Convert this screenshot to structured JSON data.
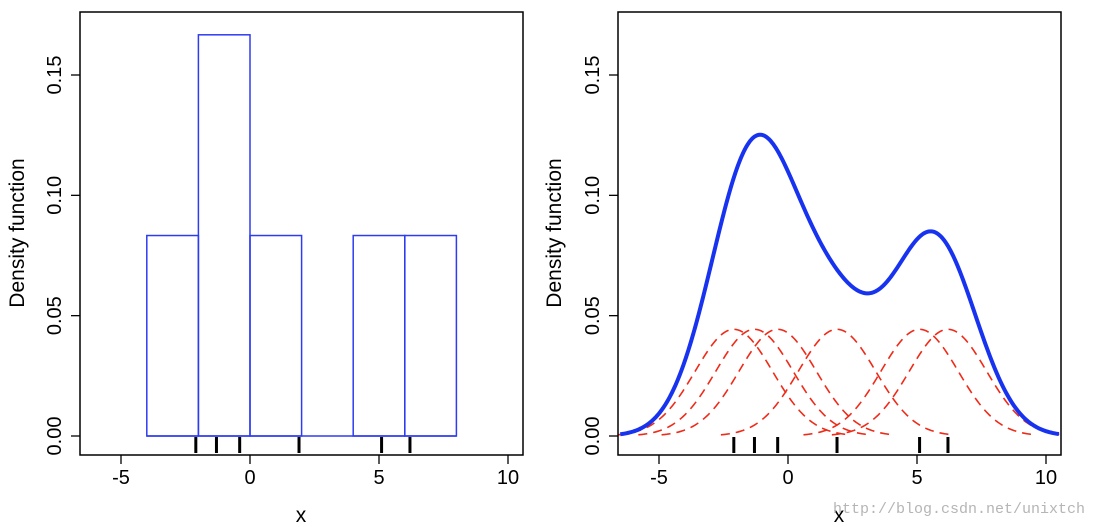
{
  "chart_data": [
    {
      "type": "bar",
      "subtype": "histogram",
      "xlabel": "x",
      "ylabel": "Density function",
      "xlim": [
        -6.5,
        10.5
      ],
      "ylim": [
        0,
        0.175
      ],
      "xticks": [
        -5,
        0,
        5,
        10
      ],
      "xtick_labels": [
        "-5",
        "0",
        "5",
        "10"
      ],
      "yticks": [
        0.0,
        0.05,
        0.1,
        0.15
      ],
      "ytick_labels": [
        "0.00",
        "0.05",
        "0.10",
        "0.15"
      ],
      "bins": [
        {
          "x0": -4,
          "x1": -2,
          "value": 0.0833
        },
        {
          "x0": -2,
          "x1": 0,
          "value": 0.1667
        },
        {
          "x0": 0,
          "x1": 2,
          "value": 0.0833
        },
        {
          "x0": 2,
          "x1": 4,
          "value": 0.0
        },
        {
          "x0": 4,
          "x1": 6,
          "value": 0.0833
        },
        {
          "x0": 6,
          "x1": 8,
          "value": 0.0833
        }
      ],
      "rug": [
        -2.1,
        -1.3,
        -0.4,
        1.9,
        5.1,
        6.2
      ],
      "color": "#2e3cf0"
    },
    {
      "type": "line",
      "subtype": "kernel-density",
      "xlabel": "x",
      "ylabel": "Density function",
      "xlim": [
        -6.5,
        10.5
      ],
      "ylim": [
        0,
        0.175
      ],
      "xticks": [
        -5,
        0,
        5,
        10
      ],
      "xtick_labels": [
        "-5",
        "0",
        "5",
        "10"
      ],
      "yticks": [
        0.0,
        0.05,
        0.1,
        0.15
      ],
      "ytick_labels": [
        "0.00",
        "0.05",
        "0.10",
        "0.15"
      ],
      "data_points": [
        -2.1,
        -1.3,
        -0.4,
        1.9,
        5.1,
        6.2
      ],
      "bandwidth": 1.5,
      "kde_color": "#1733f0",
      "kernel_color": "#f02a18",
      "series": [
        {
          "name": "kernel density estimate",
          "style": "solid"
        },
        {
          "name": "individual kernels",
          "style": "dashed"
        }
      ]
    }
  ],
  "watermark": "http://blog.csdn.net/unixtch"
}
